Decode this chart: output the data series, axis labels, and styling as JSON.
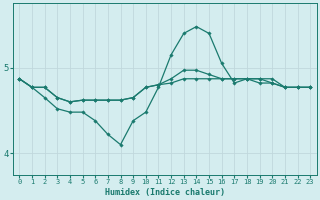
{
  "xlabel": "Humidex (Indice chaleur)",
  "bg_color": "#d4edef",
  "grid_color": "#b8d8dc",
  "line_color": "#1a7a6e",
  "xlim": [
    -0.5,
    23.5
  ],
  "ylim": [
    3.75,
    5.75
  ],
  "yticks": [
    4,
    5
  ],
  "xticks": [
    0,
    1,
    2,
    3,
    4,
    5,
    6,
    7,
    8,
    9,
    10,
    11,
    12,
    13,
    14,
    15,
    16,
    17,
    18,
    19,
    20,
    21,
    22,
    23
  ],
  "series": [
    {
      "x": [
        0,
        1,
        2,
        3,
        4,
        5,
        6,
        7,
        8,
        9,
        10,
        11,
        12,
        13,
        14,
        15,
        16,
        17,
        18,
        19,
        20,
        21,
        22,
        23
      ],
      "y": [
        4.87,
        4.77,
        4.77,
        4.65,
        4.6,
        4.62,
        4.62,
        4.62,
        4.62,
        4.65,
        4.77,
        4.8,
        4.82,
        4.87,
        4.87,
        4.87,
        4.87,
        4.87,
        4.87,
        4.87,
        4.87,
        4.77,
        4.77,
        4.77
      ]
    },
    {
      "x": [
        0,
        1,
        2,
        3,
        4,
        5,
        6,
        7,
        8,
        9,
        10,
        11,
        12,
        13,
        14,
        15,
        16,
        17,
        18,
        19,
        20,
        21,
        22,
        23
      ],
      "y": [
        4.87,
        4.77,
        4.77,
        4.65,
        4.6,
        4.62,
        4.62,
        4.62,
        4.62,
        4.65,
        4.77,
        4.8,
        4.87,
        4.97,
        4.97,
        4.92,
        4.87,
        4.87,
        4.87,
        4.82,
        4.82,
        4.77,
        4.77,
        4.77
      ]
    },
    {
      "x": [
        0,
        1,
        2,
        3,
        4,
        5,
        6,
        7,
        8,
        9,
        10,
        11,
        12,
        13,
        14,
        15,
        16,
        17,
        18,
        19,
        20,
        21,
        22,
        23
      ],
      "y": [
        4.87,
        4.77,
        4.65,
        4.52,
        4.48,
        4.48,
        4.38,
        4.22,
        4.1,
        4.38,
        4.48,
        4.77,
        5.15,
        5.4,
        5.48,
        5.4,
        5.05,
        4.82,
        4.87,
        4.87,
        4.82,
        4.77,
        4.77,
        4.77
      ]
    }
  ]
}
